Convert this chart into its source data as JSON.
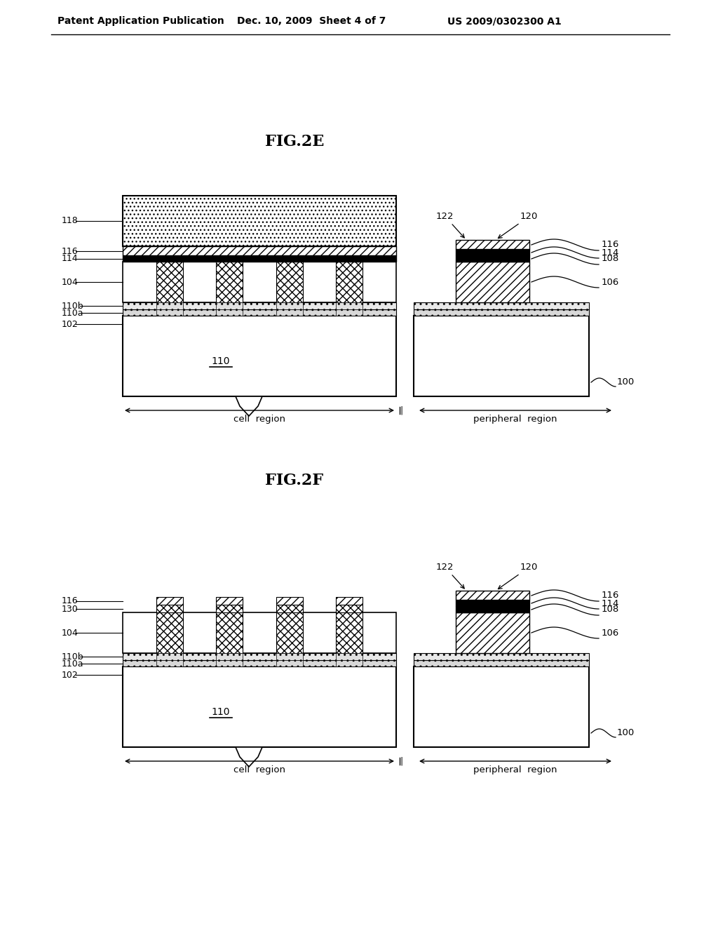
{
  "header_left": "Patent Application Publication",
  "header_mid": "Dec. 10, 2009  Sheet 4 of 7",
  "header_right": "US 2009/0302300 A1",
  "fig2e_title": "FIG.2E",
  "fig2f_title": "FIG.2F",
  "bg_color": "#ffffff"
}
